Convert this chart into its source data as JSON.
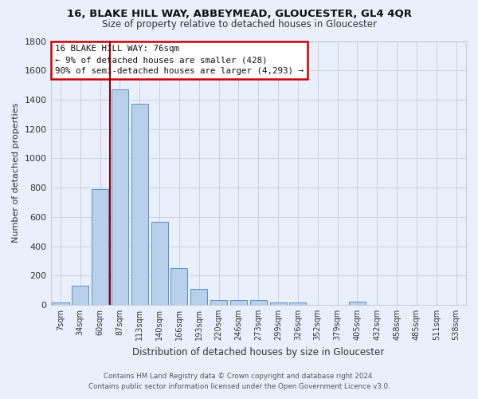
{
  "title": "16, BLAKE HILL WAY, ABBEYMEAD, GLOUCESTER, GL4 4QR",
  "subtitle": "Size of property relative to detached houses in Gloucester",
  "xlabel": "Distribution of detached houses by size in Gloucester",
  "ylabel": "Number of detached properties",
  "categories": [
    "7sqm",
    "34sqm",
    "60sqm",
    "87sqm",
    "113sqm",
    "140sqm",
    "166sqm",
    "193sqm",
    "220sqm",
    "246sqm",
    "273sqm",
    "299sqm",
    "326sqm",
    "352sqm",
    "379sqm",
    "405sqm",
    "432sqm",
    "458sqm",
    "485sqm",
    "511sqm",
    "538sqm"
  ],
  "values": [
    15,
    130,
    790,
    1470,
    1370,
    565,
    250,
    110,
    35,
    30,
    30,
    15,
    15,
    0,
    0,
    20,
    0,
    0,
    0,
    0,
    0
  ],
  "bar_color": "#b8d0ea",
  "bar_edge_color": "#5b8fc9",
  "background_color": "#eaf0fb",
  "grid_color": "#c8cfe0",
  "vline_x_idx": 3,
  "vline_color": "#8B0000",
  "annotation_line1": "16 BLAKE HILL WAY: 76sqm",
  "annotation_line2": "← 9% of detached houses are smaller (428)",
  "annotation_line3": "90% of semi-detached houses are larger (4,293) →",
  "annotation_box_color": "#ffffff",
  "annotation_border_color": "#cc0000",
  "ylim_max": 1800,
  "yticks": [
    0,
    200,
    400,
    600,
    800,
    1000,
    1200,
    1400,
    1600,
    1800
  ],
  "footer_line1": "Contains HM Land Registry data © Crown copyright and database right 2024.",
  "footer_line2": "Contains public sector information licensed under the Open Government Licence v3.0."
}
